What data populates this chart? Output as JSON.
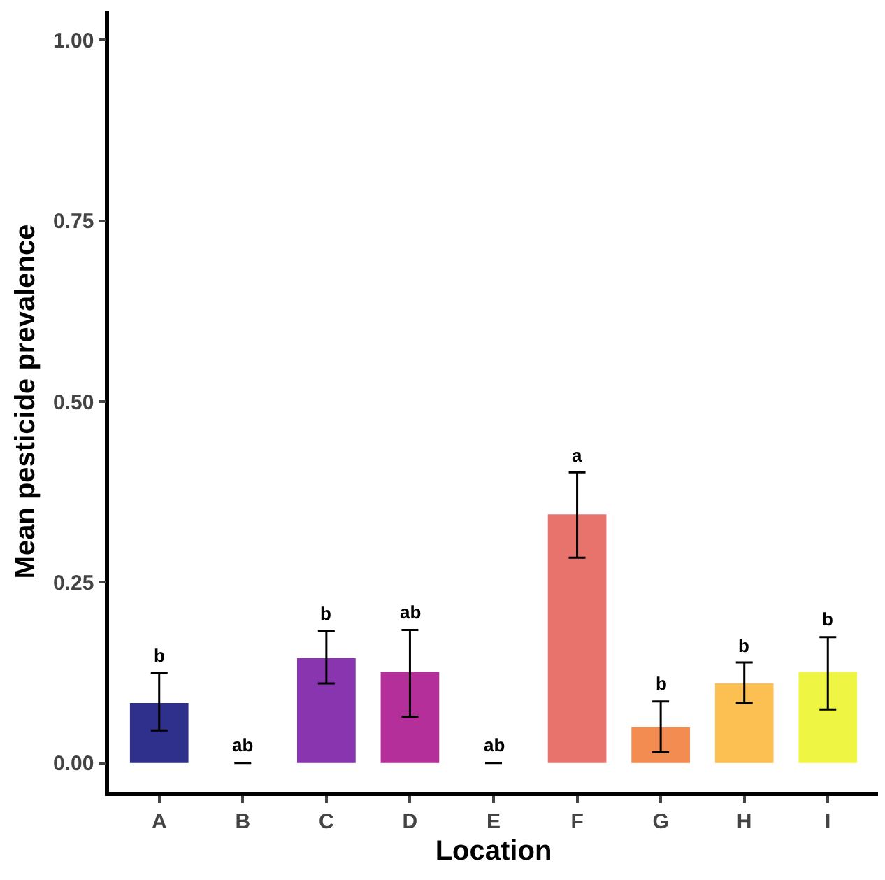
{
  "chart_data": {
    "type": "bar",
    "xlabel": "Location",
    "ylabel": "Mean pesticide prevalence",
    "categories": [
      "A",
      "B",
      "C",
      "D",
      "E",
      "F",
      "G",
      "H",
      "I"
    ],
    "values": [
      0.083,
      0,
      0.145,
      0.126,
      0,
      0.344,
      0.05,
      0.11,
      0.126
    ],
    "colors": [
      "#2f2f8c",
      "#5c2a9e",
      "#8a35b0",
      "#b52f9a",
      "#d04e86",
      "#e8736c",
      "#f28c50",
      "#fcc052",
      "#eef542"
    ],
    "errors": [
      [
        0.045,
        0.124
      ],
      [
        0,
        0
      ],
      [
        0.11,
        0.182
      ],
      [
        0.064,
        0.184
      ],
      [
        0,
        0
      ],
      [
        0.284,
        0.402
      ],
      [
        0.015,
        0.085
      ],
      [
        0.083,
        0.139
      ],
      [
        0.074,
        0.174
      ]
    ],
    "annotations": [
      {
        "text": "b",
        "x": "A",
        "y": 0.124
      },
      {
        "text": "ab",
        "x": "B",
        "y": 0
      },
      {
        "text": "b",
        "x": "C",
        "y": 0.182
      },
      {
        "text": "ab",
        "x": "D",
        "y": 0.184
      },
      {
        "text": "ab",
        "x": "E",
        "y": 0
      },
      {
        "text": "a",
        "x": "F",
        "y": 0.402
      },
      {
        "text": "b",
        "x": "G",
        "y": 0.085
      },
      {
        "text": "b",
        "x": "H",
        "y": 0.139
      },
      {
        "text": "b",
        "x": "I",
        "y": 0.174
      }
    ],
    "ylim": [
      -0.04,
      1.04
    ],
    "yticks": [
      {
        "value": 0,
        "label": "0.00"
      },
      {
        "value": 0.25,
        "label": "0.25"
      },
      {
        "value": 0.5,
        "label": "0.50"
      },
      {
        "value": 0.75,
        "label": "0.75"
      },
      {
        "value": 1,
        "label": "1.00"
      }
    ],
    "grid": false
  }
}
